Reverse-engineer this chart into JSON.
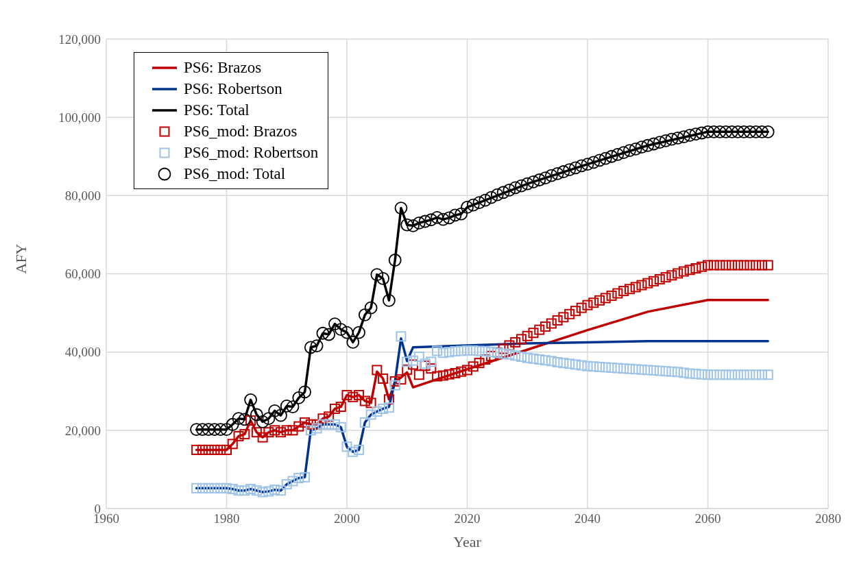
{
  "chart_data": {
    "type": "line",
    "xlabel": "Year",
    "ylabel": "AFY",
    "xlim": [
      1960,
      2080
    ],
    "xticks": [
      1960,
      1980,
      2000,
      2020,
      2040,
      2060,
      2080
    ],
    "ylim": [
      0,
      120000
    ],
    "yticks": [
      0,
      {
        "value": 20000,
        "label": "20,000"
      },
      {
        "value": 40000,
        "label": "40,000"
      },
      {
        "value": 60000,
        "label": "60,000"
      },
      {
        "value": 80000,
        "label": "80,000"
      },
      {
        "value": 100000,
        "label": "100,000"
      },
      {
        "value": 120000,
        "label": "120,000"
      }
    ],
    "grid": true,
    "legend": "top left",
    "line_style": "solid",
    "x": [
      1975,
      1976,
      1977,
      1978,
      1979,
      1980,
      1981,
      1982,
      1983,
      1984,
      1985,
      1986,
      1987,
      1988,
      1989,
      1990,
      1991,
      1992,
      1993,
      1994,
      1995,
      1996,
      1997,
      1998,
      1999,
      2000,
      2001,
      2002,
      2003,
      2004,
      2005,
      2006,
      2007,
      2008,
      2009,
      2010,
      2011,
      2012,
      2013,
      2014,
      2015,
      2016,
      2017,
      2018,
      2019,
      2020,
      2021,
      2022,
      2023,
      2024,
      2025,
      2026,
      2027,
      2028,
      2029,
      2030,
      2031,
      2032,
      2033,
      2034,
      2035,
      2036,
      2037,
      2038,
      2039,
      2040,
      2041,
      2042,
      2043,
      2044,
      2045,
      2046,
      2047,
      2048,
      2049,
      2050,
      2051,
      2052,
      2053,
      2054,
      2055,
      2056,
      2057,
      2058,
      2059,
      2060,
      2061,
      2062,
      2063,
      2064,
      2065,
      2066,
      2067,
      2068,
      2069,
      2070
    ],
    "series": [
      {
        "name": "PS6: Brazos",
        "marker": "none",
        "color": "#c00000",
        "x": [
          1975,
          1976,
          1977,
          1978,
          1979,
          1980,
          1981,
          1982,
          1983,
          1984,
          1985,
          1986,
          1987,
          1988,
          1989,
          1990,
          1991,
          1992,
          1993,
          1994,
          1995,
          1996,
          1997,
          1998,
          1999,
          2000,
          2001,
          2002,
          2003,
          2004,
          2005,
          2006,
          2007,
          2008,
          2009,
          2010,
          2011,
          2020,
          2030,
          2040,
          2050,
          2060,
          2070
        ],
        "values": [
          15000,
          15000,
          15000,
          15000,
          15000,
          15000,
          16500,
          18500,
          19000,
          22500,
          19500,
          18200,
          19500,
          20000,
          19500,
          20000,
          20000,
          21000,
          22000,
          21500,
          21500,
          23000,
          23500,
          25500,
          26000,
          29000,
          28500,
          29000,
          27500,
          27000,
          35000,
          33200,
          27900,
          32500,
          33500,
          34800,
          31000,
          35600,
          40600,
          45600,
          50300,
          53300,
          53300
        ]
      },
      {
        "name": "PS6: Robertson",
        "marker": "none",
        "color": "#00338d",
        "x": [
          1975,
          1976,
          1977,
          1978,
          1979,
          1980,
          1981,
          1982,
          1983,
          1984,
          1985,
          1986,
          1987,
          1988,
          1989,
          1990,
          1991,
          1992,
          1993,
          1994,
          1995,
          1996,
          1997,
          1998,
          1999,
          2000,
          2001,
          2002,
          2003,
          2004,
          2005,
          2006,
          2007,
          2008,
          2009,
          2010,
          2011,
          2020,
          2030,
          2040,
          2050,
          2060,
          2070
        ],
        "values": [
          5200,
          5200,
          5200,
          5200,
          5200,
          5200,
          5000,
          4600,
          4600,
          5000,
          4600,
          4200,
          4400,
          4800,
          4600,
          6200,
          7000,
          7800,
          8000,
          20000,
          20500,
          21500,
          21500,
          21500,
          20800,
          15800,
          14500,
          15000,
          22000,
          24000,
          24800,
          25500,
          26000,
          32500,
          43500,
          37700,
          41200,
          41700,
          42200,
          42500,
          42800,
          42800,
          42800
        ]
      },
      {
        "name": "PS6: Total",
        "marker": "none",
        "color": "#000000",
        "x": [
          1975,
          1976,
          1977,
          1978,
          1979,
          1980,
          1981,
          1982,
          1983,
          1984,
          1985,
          1986,
          1987,
          1988,
          1989,
          1990,
          1991,
          1992,
          1993,
          1994,
          1995,
          1996,
          1997,
          1998,
          1999,
          2000,
          2001,
          2002,
          2003,
          2004,
          2005,
          2006,
          2007,
          2008,
          2009,
          2010,
          2011,
          2012,
          2013,
          2014,
          2015,
          2016,
          2017,
          2018,
          2019,
          2020,
          2030,
          2040,
          2050,
          2060,
          2070
        ],
        "values": [
          20200,
          20200,
          20200,
          20200,
          20200,
          20200,
          21500,
          23000,
          22800,
          27800,
          24000,
          22200,
          23000,
          25000,
          23800,
          26200,
          26000,
          28300,
          29800,
          41200,
          41600,
          44800,
          44500,
          47200,
          45800,
          45000,
          42500,
          45000,
          49500,
          51300,
          59800,
          58800,
          53200,
          63500,
          76800,
          72500,
          72300,
          73000,
          73400,
          73800,
          74400,
          73900,
          74300,
          75000,
          75300,
          77000,
          83000,
          88000,
          92800,
          96300,
          96300
        ]
      },
      {
        "name": "PS6_mod: Brazos",
        "type": "scatter",
        "marker": "square",
        "color": "#c00000",
        "values": [
          15000,
          15000,
          15000,
          15000,
          15000,
          15000,
          16500,
          18500,
          19000,
          22500,
          19500,
          18200,
          19500,
          20000,
          19500,
          20000,
          20000,
          21000,
          22000,
          21500,
          21500,
          23000,
          23500,
          25500,
          26000,
          29000,
          28500,
          29000,
          27500,
          27000,
          35400,
          33200,
          27900,
          32500,
          33000,
          35500,
          36800,
          34200,
          36500,
          35800,
          33800,
          34000,
          34300,
          34600,
          35000,
          35400,
          36300,
          37200,
          38100,
          39000,
          39900,
          40800,
          41700,
          42500,
          43300,
          44100,
          44900,
          45700,
          46500,
          47300,
          48100,
          48900,
          49700,
          50500,
          51300,
          52000,
          52600,
          53200,
          53800,
          54400,
          55000,
          55600,
          56100,
          56600,
          57100,
          57600,
          58100,
          58600,
          59100,
          59600,
          60100,
          60600,
          61000,
          61400,
          61800,
          62200,
          62200,
          62200,
          62200,
          62200,
          62200,
          62200,
          62200,
          62200,
          62200,
          62200
        ]
      },
      {
        "name": "PS6_mod: Robertson",
        "type": "scatter",
        "marker": "square",
        "color": "#9dc3e6",
        "values": [
          5200,
          5200,
          5200,
          5200,
          5200,
          5200,
          5000,
          4600,
          4600,
          5000,
          4600,
          4200,
          4400,
          4800,
          4600,
          6200,
          7000,
          7800,
          8000,
          20000,
          20500,
          21500,
          21500,
          21500,
          20800,
          15800,
          14500,
          15000,
          22000,
          24000,
          24800,
          25500,
          25800,
          31500,
          44000,
          37500,
          37800,
          38800,
          37000,
          37500,
          40300,
          39800,
          40000,
          40200,
          40300,
          40400,
          40400,
          40300,
          40200,
          40000,
          39800,
          39600,
          39400,
          39100,
          38800,
          38500,
          38300,
          38100,
          37900,
          37700,
          37400,
          37200,
          37000,
          36800,
          36600,
          36400,
          36300,
          36200,
          36100,
          36000,
          35900,
          35800,
          35700,
          35600,
          35500,
          35400,
          35300,
          35200,
          35100,
          35000,
          34900,
          34700,
          34500,
          34400,
          34300,
          34200,
          34200,
          34200,
          34200,
          34200,
          34200,
          34200,
          34200,
          34200,
          34200,
          34200
        ]
      },
      {
        "name": "PS6_mod: Total",
        "type": "scatter",
        "marker": "circle",
        "color": "#000000",
        "values": [
          20200,
          20200,
          20200,
          20200,
          20200,
          20200,
          21500,
          23000,
          22800,
          27800,
          24000,
          22200,
          23000,
          25000,
          23800,
          26200,
          26000,
          28300,
          29800,
          41200,
          41600,
          44800,
          44500,
          47200,
          45800,
          45000,
          42500,
          45000,
          49500,
          51300,
          59800,
          58800,
          53200,
          63500,
          76800,
          72500,
          72300,
          73000,
          73400,
          73800,
          74400,
          73900,
          74300,
          75000,
          75300,
          77000,
          77600,
          78200,
          78800,
          79500,
          80200,
          80800,
          81400,
          82000,
          82500,
          83000,
          83500,
          84000,
          84500,
          85100,
          85600,
          86100,
          86600,
          87100,
          87600,
          88000,
          88500,
          89000,
          89500,
          90000,
          90500,
          91000,
          91500,
          91900,
          92400,
          92800,
          93200,
          93600,
          94000,
          94400,
          94700,
          95000,
          95400,
          95700,
          96000,
          96300,
          96300,
          96300,
          96300,
          96300,
          96300,
          96300,
          96300,
          96300,
          96300,
          96300
        ]
      }
    ]
  }
}
